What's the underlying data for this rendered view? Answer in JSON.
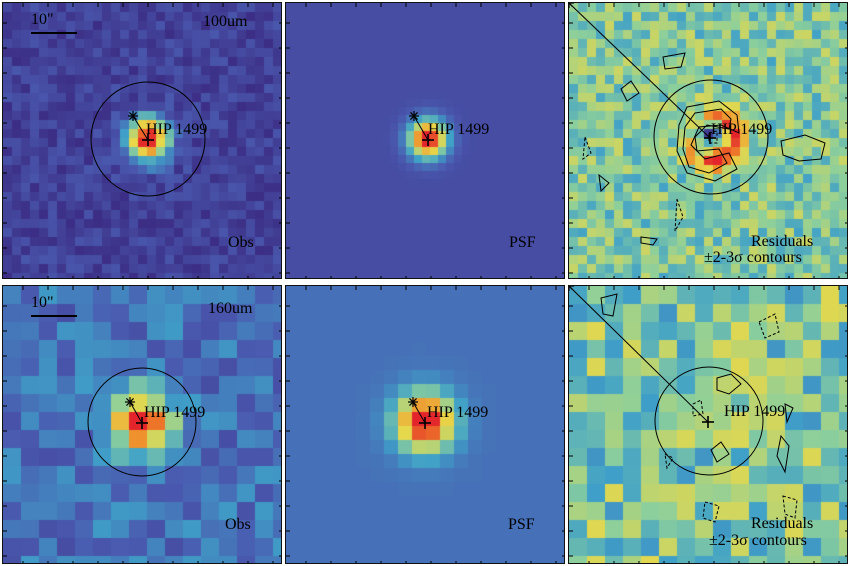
{
  "rows": [
    {
      "band": "100um",
      "scale_label": "10\"",
      "panels": [
        {
          "kind": "obs",
          "corner_label": "Obs",
          "star": "HIP 1499",
          "contours": false
        },
        {
          "kind": "psf",
          "corner_label": "PSF",
          "star": "HIP 1499",
          "contours": false
        },
        {
          "kind": "residuals",
          "corner_label": "Residuals",
          "corner_label2": "±2-3σ contours",
          "star": "HIP 1499",
          "contours": true
        }
      ]
    },
    {
      "band": "160um",
      "scale_label": "10\"",
      "panels": [
        {
          "kind": "obs",
          "corner_label": "Obs",
          "star": "HIP 1499",
          "contours": false
        },
        {
          "kind": "psf",
          "corner_label": "PSF",
          "star": "HIP 1499",
          "contours": false
        },
        {
          "kind": "residuals",
          "corner_label": "Residuals",
          "corner_label2": "±2-3σ contours",
          "star": "HIP 1499",
          "contours": true
        }
      ]
    }
  ],
  "colormap": [
    "#3b2a82",
    "#4a5bb0",
    "#3fa0c8",
    "#8ccf9c",
    "#e7d84a",
    "#f08a2a",
    "#e3242b"
  ]
}
